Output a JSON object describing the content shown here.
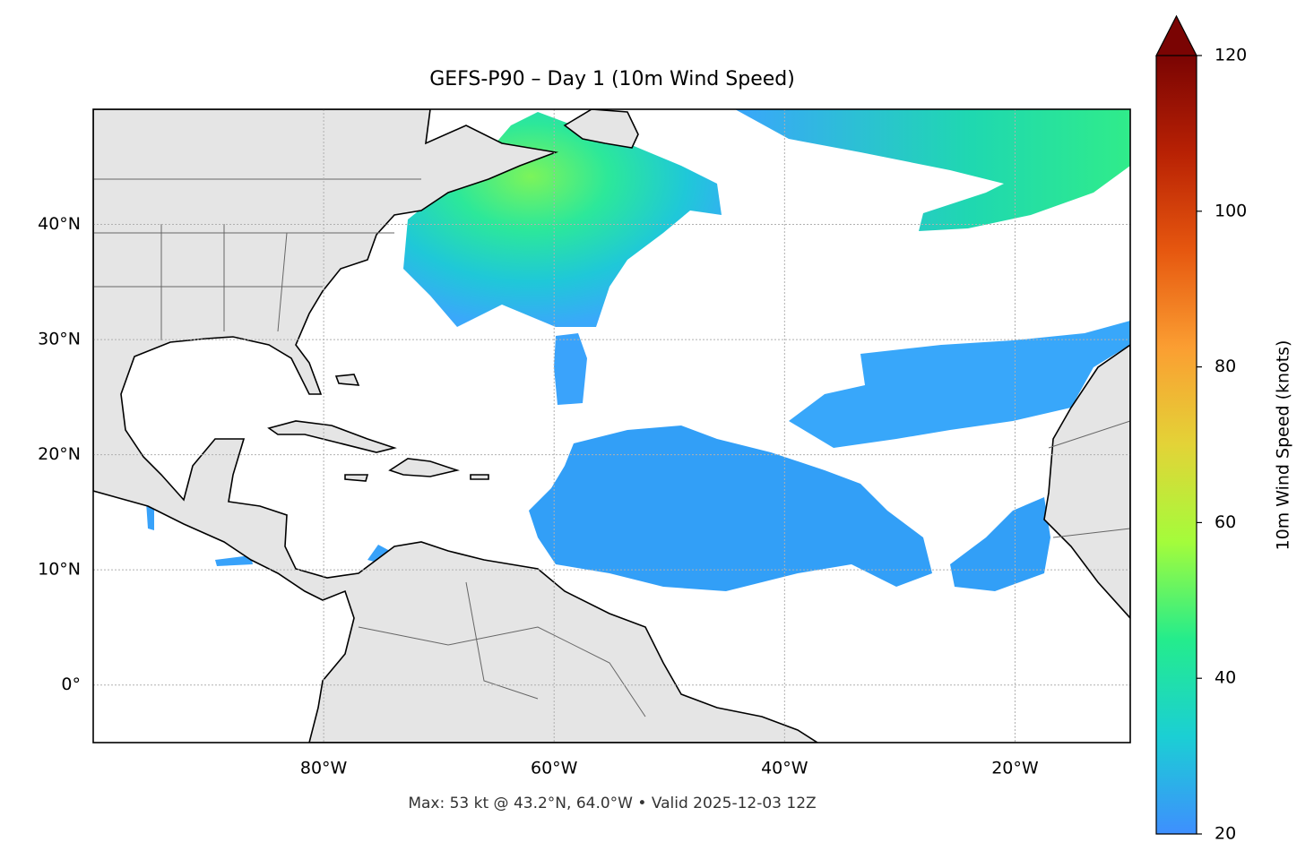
{
  "chart_data": {
    "type": "map",
    "title": "GEFS-P90 – Day 1 (10m Wind Speed)",
    "annotation": "Max: 53 kt @ 43.2°N, 64.0°W • Valid 2025-12-03 12Z",
    "xlim": [
      -100,
      -10
    ],
    "ylim": [
      -5,
      50
    ],
    "xticks": [
      {
        "value": -80,
        "label": "80°W"
      },
      {
        "value": -60,
        "label": "60°W"
      },
      {
        "value": -40,
        "label": "40°W"
      },
      {
        "value": -20,
        "label": "20°W"
      }
    ],
    "yticks": [
      {
        "value": 0,
        "label": "0°"
      },
      {
        "value": 10,
        "label": "10°N"
      },
      {
        "value": 20,
        "label": "20°N"
      },
      {
        "value": 30,
        "label": "30°N"
      },
      {
        "value": 40,
        "label": "40°N"
      }
    ],
    "grid": true,
    "colorbar": {
      "label": "10m Wind Speed (knots)",
      "lim": [
        20,
        120
      ],
      "ticks": [
        20,
        40,
        60,
        80,
        100,
        120
      ],
      "extend": "max",
      "colors": [
        "#3e8ffe",
        "#1bcfd4",
        "#24ec8c",
        "#a4fc3b",
        "#e3d337",
        "#fb9e32",
        "#e6570f",
        "#b82104",
        "#7a0403"
      ]
    }
  }
}
